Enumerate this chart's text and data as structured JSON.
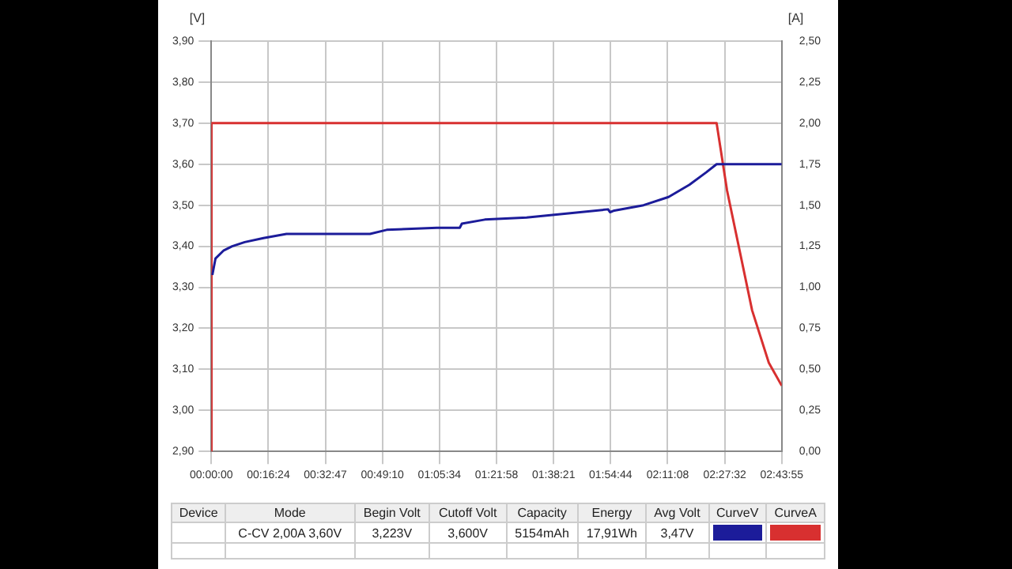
{
  "chart_data": {
    "type": "line",
    "ylabel": "[V]",
    "y2label": "[A]",
    "xlim": [
      0,
      2.7319
    ],
    "xticks": [
      {
        "value": 0,
        "label": "00:00:00"
      },
      {
        "value": 0.2733,
        "label": "00:16:24"
      },
      {
        "value": 0.5464,
        "label": "00:32:47"
      },
      {
        "value": 0.8194,
        "label": "00:49:10"
      },
      {
        "value": 1.0928,
        "label": "01:05:34"
      },
      {
        "value": 1.3661,
        "label": "01:21:58"
      },
      {
        "value": 1.6392,
        "label": "01:38:21"
      },
      {
        "value": 1.9122,
        "label": "01:54:44"
      },
      {
        "value": 2.1856,
        "label": "02:11:08"
      },
      {
        "value": 2.4589,
        "label": "02:27:32"
      },
      {
        "value": 2.7319,
        "label": "02:43:55"
      }
    ],
    "ylim": [
      2.9,
      3.9
    ],
    "yticks": [
      {
        "value": 2.9,
        "label": "2,90"
      },
      {
        "value": 3.0,
        "label": "3,00"
      },
      {
        "value": 3.1,
        "label": "3,10"
      },
      {
        "value": 3.2,
        "label": "3,20"
      },
      {
        "value": 3.3,
        "label": "3,30"
      },
      {
        "value": 3.4,
        "label": "3,40"
      },
      {
        "value": 3.5,
        "label": "3,50"
      },
      {
        "value": 3.6,
        "label": "3,60"
      },
      {
        "value": 3.7,
        "label": "3,70"
      },
      {
        "value": 3.8,
        "label": "3,80"
      },
      {
        "value": 3.9,
        "label": "3,90"
      }
    ],
    "y2lim": [
      0,
      2.5
    ],
    "y2ticks": [
      {
        "value": 0,
        "label": "0,00"
      },
      {
        "value": 0.25,
        "label": "0,25"
      },
      {
        "value": 0.5,
        "label": "0,50"
      },
      {
        "value": 0.75,
        "label": "0,75"
      },
      {
        "value": 1.0,
        "label": "1,00"
      },
      {
        "value": 1.25,
        "label": "1,25"
      },
      {
        "value": 1.5,
        "label": "1,50"
      },
      {
        "value": 1.75,
        "label": "1,75"
      },
      {
        "value": 2.0,
        "label": "2,00"
      },
      {
        "value": 2.25,
        "label": "2,25"
      },
      {
        "value": 2.5,
        "label": "2,50"
      }
    ],
    "grid": true,
    "legend": false,
    "marker": "none",
    "line_style": "solid",
    "series": [
      {
        "color": "#1c1c9a",
        "x": [
          0.005,
          0.02,
          0.06,
          0.1,
          0.16,
          0.25,
          0.36,
          0.76,
          0.84,
          1.08,
          1.19,
          1.2,
          1.31,
          1.51,
          1.71,
          1.9,
          1.91,
          1.93,
          2.07,
          2.19,
          2.29,
          2.37,
          2.42,
          2.7319
        ],
        "values": [
          3.33,
          3.37,
          3.39,
          3.4,
          3.41,
          3.42,
          3.43,
          3.43,
          3.44,
          3.445,
          3.445,
          3.455,
          3.465,
          3.47,
          3.48,
          3.49,
          3.483,
          3.487,
          3.5,
          3.52,
          3.55,
          3.58,
          3.6,
          3.6
        ]
      },
      {
        "color": "#d83030",
        "axis": "y2",
        "x": [
          0,
          0.001,
          2.42,
          2.47,
          2.59,
          2.67,
          2.7319
        ],
        "values": [
          0,
          2.0,
          2.0,
          1.59,
          0.86,
          0.54,
          0.4
        ]
      }
    ],
    "annotations": [
      "Device",
      "Mode",
      "Begin Volt",
      "Cutoff Volt",
      "Capacity",
      "Energy",
      "Avg Volt",
      "CurveV",
      "CurveA",
      "C-CV 2,00A 3,60V",
      "3,223V",
      "3,600V",
      "5154mAh",
      "17,91Wh",
      "3,47V"
    ]
  }
}
